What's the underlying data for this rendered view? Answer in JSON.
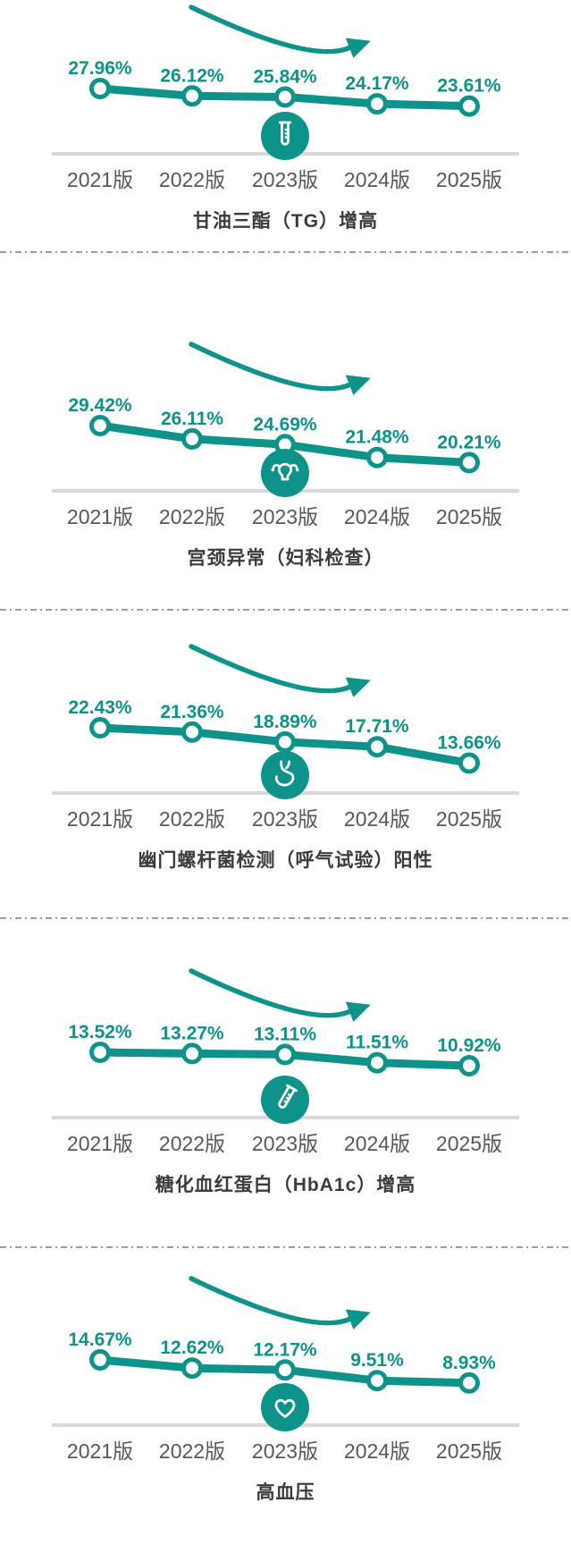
{
  "page": {
    "background": "#ffffff",
    "description_note": "五项体检异常率逐年下降折线图组"
  },
  "colors": {
    "accent": "#0e938a",
    "point_fill": "#ffffff",
    "baseline": "#d9d9d9",
    "axis_label": "#57585c",
    "title": "#3b3b3d",
    "divider": "#9d9d9d",
    "icon_glyph": "#ffffff"
  },
  "trend_arrow": {
    "direction": "down-right"
  },
  "chart_data": [
    {
      "type": "line",
      "title": "甘油三酯（TG）增高",
      "icon": "test-tube-icon",
      "categories": [
        "2021版",
        "2022版",
        "2023版",
        "2024版",
        "2025版"
      ],
      "values": [
        27.96,
        26.12,
        25.84,
        24.17,
        23.61
      ],
      "value_labels": [
        "27.96%",
        "26.12%",
        "25.84%",
        "24.17%",
        "23.61%"
      ]
    },
    {
      "type": "line",
      "title": "宫颈异常（妇科检查）",
      "icon": "uterus-icon",
      "categories": [
        "2021版",
        "2022版",
        "2023版",
        "2024版",
        "2025版"
      ],
      "values": [
        29.42,
        26.11,
        24.69,
        21.48,
        20.21
      ],
      "value_labels": [
        "29.42%",
        "26.11%",
        "24.69%",
        "21.48%",
        "20.21%"
      ]
    },
    {
      "type": "line",
      "title": "幽门螺杆菌检测（呼气试验）阳性",
      "icon": "stomach-icon",
      "categories": [
        "2021版",
        "2022版",
        "2023版",
        "2024版",
        "2025版"
      ],
      "values": [
        22.43,
        21.36,
        18.89,
        17.71,
        13.66
      ],
      "value_labels": [
        "22.43%",
        "21.36%",
        "18.89%",
        "17.71%",
        "13.66%"
      ]
    },
    {
      "type": "line",
      "title": "糖化血红蛋白（HbA1c）增高",
      "icon": "test-tube-tilted-icon",
      "categories": [
        "2021版",
        "2022版",
        "2023版",
        "2024版",
        "2025版"
      ],
      "values": [
        13.52,
        13.27,
        13.11,
        11.51,
        10.92
      ],
      "value_labels": [
        "13.52%",
        "13.27%",
        "13.11%",
        "11.51%",
        "10.92%"
      ]
    },
    {
      "type": "line",
      "title": "高血压",
      "icon": "heart-icon",
      "categories": [
        "2021版",
        "2022版",
        "2023版",
        "2024版",
        "2025版"
      ],
      "values": [
        14.67,
        12.62,
        12.17,
        9.51,
        8.93
      ],
      "value_labels": [
        "14.67%",
        "12.62%",
        "12.17%",
        "9.51%",
        "8.93%"
      ]
    }
  ]
}
